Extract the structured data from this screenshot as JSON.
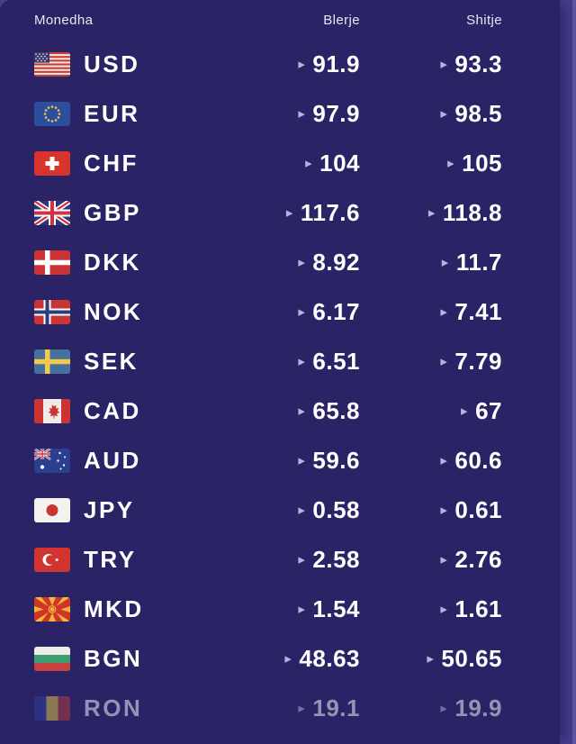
{
  "table": {
    "header": {
      "currency": "Monedha",
      "buy": "Blerje",
      "sell": "Shitje"
    },
    "rows": [
      {
        "code": "USD",
        "flag": "us",
        "buy": "91.9",
        "sell": "93.3",
        "muted": false
      },
      {
        "code": "EUR",
        "flag": "eu",
        "buy": "97.9",
        "sell": "98.5",
        "muted": false
      },
      {
        "code": "CHF",
        "flag": "ch",
        "buy": "104",
        "sell": "105",
        "muted": false
      },
      {
        "code": "GBP",
        "flag": "gb",
        "buy": "117.6",
        "sell": "118.8",
        "muted": false
      },
      {
        "code": "DKK",
        "flag": "dk",
        "buy": "8.92",
        "sell": "11.7",
        "muted": false
      },
      {
        "code": "NOK",
        "flag": "no",
        "buy": "6.17",
        "sell": "7.41",
        "muted": false
      },
      {
        "code": "SEK",
        "flag": "se",
        "buy": "6.51",
        "sell": "7.79",
        "muted": false
      },
      {
        "code": "CAD",
        "flag": "ca",
        "buy": "65.8",
        "sell": "67",
        "muted": false
      },
      {
        "code": "AUD",
        "flag": "au",
        "buy": "59.6",
        "sell": "60.6",
        "muted": false
      },
      {
        "code": "JPY",
        "flag": "jp",
        "buy": "0.58",
        "sell": "0.61",
        "muted": false
      },
      {
        "code": "TRY",
        "flag": "tr",
        "buy": "2.58",
        "sell": "2.76",
        "muted": false
      },
      {
        "code": "MKD",
        "flag": "mk",
        "buy": "1.54",
        "sell": "1.61",
        "muted": false
      },
      {
        "code": "BGN",
        "flag": "bg",
        "buy": "48.63",
        "sell": "50.65",
        "muted": false
      },
      {
        "code": "RON",
        "flag": "ro",
        "buy": "19.1",
        "sell": "19.9",
        "muted": true
      }
    ]
  },
  "icons": {
    "rate_arrow": "▸"
  },
  "colors": {
    "backdrop": "#453f90",
    "card": "#2a2467",
    "row_text": "#ffffff",
    "header_text": "#e9e7f4",
    "arrow": "#b7b3dc"
  }
}
